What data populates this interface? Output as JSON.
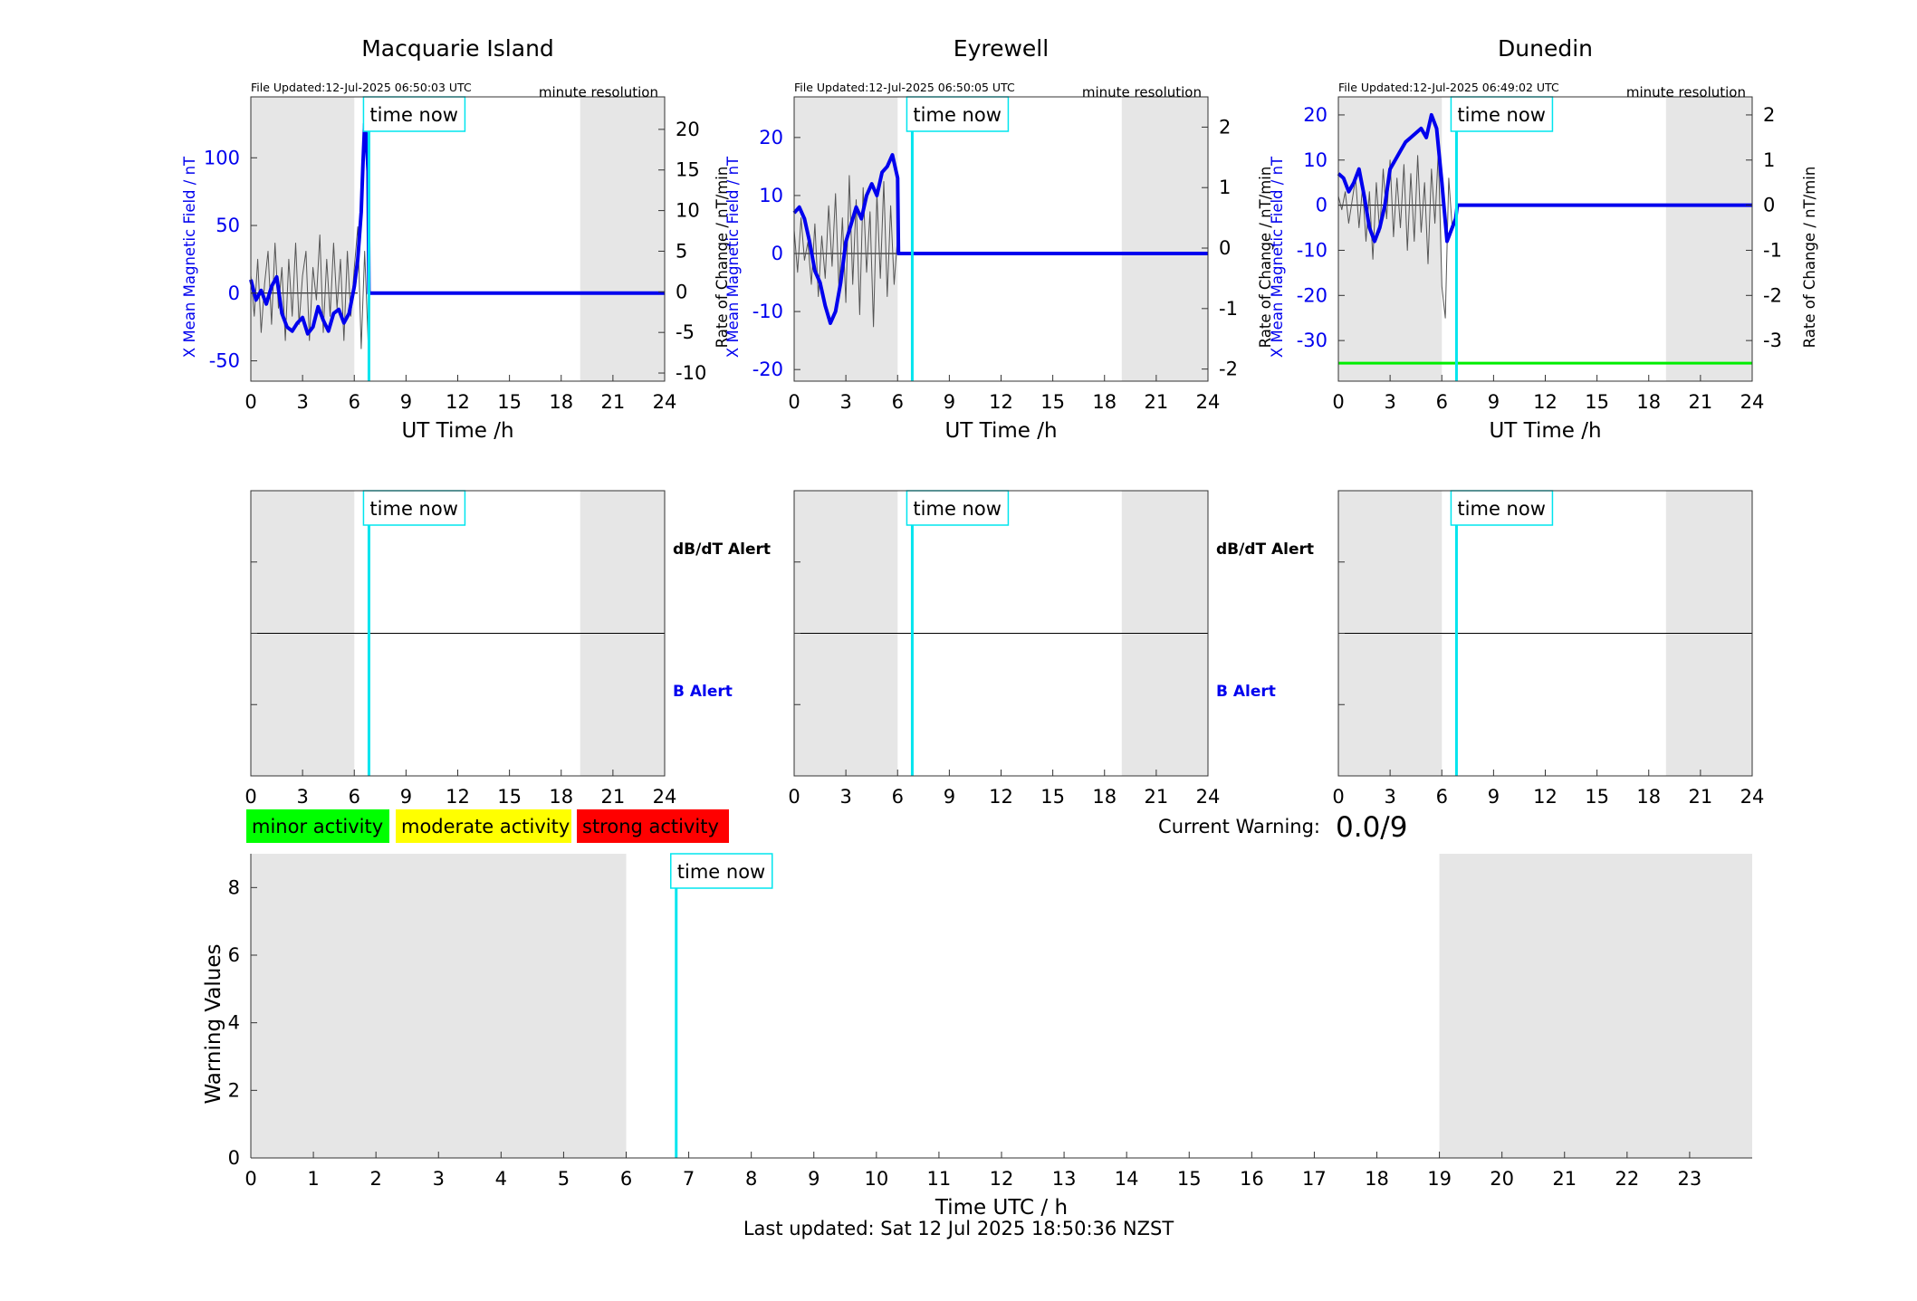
{
  "footer": {
    "last_updated": "Last updated: Sat 12 Jul 2025 18:50:36 NZST"
  },
  "labels": {
    "time_now": "time now",
    "minute_resolution": "minute resolution",
    "dbdt_alert": "dB/dT Alert",
    "b_alert": "B Alert",
    "current_warning_label": "Current Warning:",
    "current_warning_value": "0.0/9"
  },
  "legend": [
    {
      "label": "minor activity",
      "color": "#00ff00"
    },
    {
      "label": "moderate activity",
      "color": "#ffff00"
    },
    {
      "label": "strong activity",
      "color": "#ff0000"
    }
  ],
  "colors": {
    "field_line": "#0000ee",
    "rate_line": "#555555",
    "time_now_line": "#00e5ee",
    "night_shade": "#e6e6e6",
    "threshold_line": "#00ee00"
  },
  "chart_data": [
    {
      "id": "macquarie",
      "type": "line",
      "title": "Macquarie Island",
      "file_updated": "File Updated:12-Jul-2025 06:50:03 UTC",
      "xlabel": "UT Time /h",
      "ylabel": "X Mean Magnetic Field / nT",
      "ylabel_right": "Rate of Change / nT/min",
      "xlim": [
        0,
        24
      ],
      "ylim": [
        -65,
        145
      ],
      "ylim_right": [
        -11,
        24
      ],
      "xticks": [
        0,
        3,
        6,
        9,
        12,
        15,
        18,
        21,
        24
      ],
      "yticks": [
        -50,
        0,
        50,
        100
      ],
      "yticks_right": [
        -10,
        -5,
        0,
        5,
        10,
        15,
        20
      ],
      "night_shade": [
        [
          0,
          6
        ],
        [
          19.1,
          24
        ]
      ],
      "time_now": 6.85,
      "series": [
        {
          "axis": "left",
          "x": [
            0,
            0.3,
            0.6,
            0.9,
            1.2,
            1.5,
            1.8,
            2.1,
            2.4,
            2.7,
            3.0,
            3.3,
            3.6,
            3.9,
            4.2,
            4.5,
            4.8,
            5.1,
            5.4,
            5.7,
            6.0,
            6.2,
            6.4,
            6.5,
            6.6,
            6.7,
            6.8,
            6.85,
            24
          ],
          "values": [
            10,
            -5,
            2,
            -8,
            5,
            12,
            -15,
            -25,
            -28,
            -22,
            -18,
            -30,
            -25,
            -10,
            -20,
            -28,
            -15,
            -12,
            -22,
            -15,
            5,
            25,
            60,
            95,
            125,
            115,
            90,
            0,
            0
          ]
        },
        {
          "axis": "right",
          "x": [
            0,
            0.2,
            0.4,
            0.6,
            0.8,
            1.0,
            1.2,
            1.4,
            1.6,
            1.8,
            2.0,
            2.2,
            2.4,
            2.6,
            2.8,
            3.0,
            3.2,
            3.4,
            3.6,
            3.8,
            4.0,
            4.2,
            4.4,
            4.6,
            4.8,
            5.0,
            5.2,
            5.4,
            5.6,
            5.8,
            6.0,
            6.2,
            6.4,
            6.6,
            6.8
          ],
          "values": [
            2,
            -3,
            4,
            -5,
            1,
            5,
            -4,
            6,
            -2,
            3,
            -6,
            4,
            -3,
            6,
            -4,
            2,
            5,
            -6,
            3,
            -1,
            7,
            -5,
            4,
            -3,
            6,
            -2,
            4,
            -6,
            5,
            -3,
            3,
            8,
            -7,
            5,
            -6
          ]
        }
      ]
    },
    {
      "id": "eyrewell",
      "type": "line",
      "title": "Eyrewell",
      "file_updated": "File Updated:12-Jul-2025 06:50:05 UTC",
      "xlabel": "UT Time /h",
      "ylabel": "X Mean Magnetic Field / nT",
      "ylabel_right": "Rate of Change / nT/min",
      "xlim": [
        0,
        24
      ],
      "ylim": [
        -22,
        27
      ],
      "ylim_right": [
        -2.2,
        2.5
      ],
      "xticks": [
        0,
        3,
        6,
        9,
        12,
        15,
        18,
        21,
        24
      ],
      "yticks": [
        -20,
        -10,
        0,
        10,
        20
      ],
      "yticks_right": [
        -2,
        -1,
        0,
        1,
        2
      ],
      "night_shade": [
        [
          0,
          6
        ],
        [
          19,
          24
        ]
      ],
      "time_now": 6.85,
      "series": [
        {
          "axis": "left",
          "x": [
            0,
            0.3,
            0.6,
            0.9,
            1.2,
            1.5,
            1.8,
            2.1,
            2.4,
            2.7,
            3.0,
            3.3,
            3.6,
            3.9,
            4.2,
            4.5,
            4.8,
            5.1,
            5.4,
            5.7,
            6.0,
            6.05,
            24
          ],
          "values": [
            7,
            8,
            6,
            2,
            -3,
            -5,
            -9,
            -12,
            -10,
            -5,
            2,
            5,
            8,
            6,
            10,
            12,
            10,
            14,
            15,
            17,
            13,
            0,
            0
          ]
        },
        {
          "axis": "right",
          "x": [
            0,
            0.2,
            0.4,
            0.6,
            0.8,
            1.0,
            1.2,
            1.4,
            1.6,
            1.8,
            2.0,
            2.2,
            2.4,
            2.6,
            2.8,
            3.0,
            3.2,
            3.4,
            3.6,
            3.8,
            4.0,
            4.2,
            4.4,
            4.6,
            4.8,
            5.0,
            5.2,
            5.4,
            5.6,
            5.8,
            6.0
          ],
          "values": [
            0.3,
            -0.4,
            0.5,
            -0.2,
            0.1,
            -0.6,
            0.4,
            -0.8,
            0.2,
            -0.5,
            0.7,
            -0.3,
            0.9,
            -0.7,
            0.5,
            -0.9,
            1.2,
            -0.6,
            0.8,
            -1.1,
            1.0,
            -0.4,
            0.6,
            -1.3,
            0.9,
            -0.5,
            1.1,
            -0.8,
            0.7,
            -0.6,
            0.2
          ]
        }
      ]
    },
    {
      "id": "dunedin",
      "type": "line",
      "title": "Dunedin",
      "file_updated": "File Updated:12-Jul-2025 06:49:02 UTC",
      "xlabel": "UT Time /h",
      "ylabel": "X Mean Magnetic Field / nT",
      "ylabel_right": "Rate of Change / nT/min",
      "xlim": [
        0,
        24
      ],
      "ylim": [
        -39,
        24
      ],
      "ylim_right": [
        -3.9,
        2.4
      ],
      "xticks": [
        0,
        3,
        6,
        9,
        12,
        15,
        18,
        21,
        24
      ],
      "yticks": [
        -30,
        -20,
        -10,
        0,
        10,
        20
      ],
      "yticks_right": [
        -3,
        -2,
        -1,
        0,
        1,
        2
      ],
      "night_shade": [
        [
          0,
          6
        ],
        [
          19,
          24
        ]
      ],
      "time_now": 6.85,
      "threshold": -35,
      "series": [
        {
          "axis": "left",
          "x": [
            0,
            0.3,
            0.6,
            0.9,
            1.2,
            1.5,
            1.8,
            2.1,
            2.4,
            2.7,
            3.0,
            3.3,
            3.6,
            3.9,
            4.2,
            4.5,
            4.8,
            5.1,
            5.4,
            5.7,
            6.0,
            6.3,
            6.6,
            6.8,
            6.9,
            24
          ],
          "values": [
            7,
            6,
            3,
            5,
            8,
            2,
            -5,
            -8,
            -5,
            0,
            8,
            10,
            12,
            14,
            15,
            16,
            17,
            15,
            20,
            17,
            5,
            -8,
            -5,
            -3,
            0,
            0
          ]
        },
        {
          "axis": "right",
          "x": [
            0,
            0.2,
            0.4,
            0.6,
            0.8,
            1.0,
            1.2,
            1.4,
            1.6,
            1.8,
            2.0,
            2.2,
            2.4,
            2.6,
            2.8,
            3.0,
            3.2,
            3.4,
            3.6,
            3.8,
            4.0,
            4.2,
            4.4,
            4.6,
            4.8,
            5.0,
            5.2,
            5.4,
            5.6,
            5.8,
            6.0,
            6.2,
            6.4,
            6.6
          ],
          "values": [
            0.2,
            -0.1,
            0.3,
            -0.4,
            0.1,
            0.6,
            -0.5,
            0.4,
            -0.8,
            0.3,
            -1.2,
            0.5,
            -0.6,
            0.8,
            -0.3,
            1.0,
            -0.7,
            0.6,
            -0.5,
            0.9,
            -1.0,
            0.7,
            -0.8,
            1.1,
            -0.6,
            0.5,
            -1.3,
            0.8,
            -0.4,
            1.2,
            -1.8,
            -2.5,
            0.6,
            -0.5
          ]
        }
      ]
    },
    {
      "id": "alert-macquarie",
      "type": "table",
      "xlim": [
        0,
        24
      ],
      "xticks": [
        0,
        3,
        6,
        9,
        12,
        15,
        18,
        21,
        24
      ],
      "night_shade": [
        [
          0,
          6
        ],
        [
          19.1,
          24
        ]
      ],
      "time_now": 6.85,
      "show_alert_labels": true
    },
    {
      "id": "alert-eyrewell",
      "type": "table",
      "xlim": [
        0,
        24
      ],
      "xticks": [
        0,
        3,
        6,
        9,
        12,
        15,
        18,
        21,
        24
      ],
      "night_shade": [
        [
          0,
          6
        ],
        [
          19,
          24
        ]
      ],
      "time_now": 6.85,
      "show_alert_labels": true
    },
    {
      "id": "alert-dunedin",
      "type": "table",
      "xlim": [
        0,
        24
      ],
      "xticks": [
        0,
        3,
        6,
        9,
        12,
        15,
        18,
        21,
        24
      ],
      "night_shade": [
        [
          0,
          6
        ],
        [
          19,
          24
        ]
      ],
      "time_now": 6.85,
      "show_alert_labels": false
    },
    {
      "id": "warning",
      "type": "bar",
      "xlabel": "Time UTC / h",
      "ylabel": "Warning Values",
      "xlim": [
        0,
        24
      ],
      "ylim": [
        0,
        9
      ],
      "xticks": [
        0,
        1,
        2,
        3,
        4,
        5,
        6,
        7,
        8,
        9,
        10,
        11,
        12,
        13,
        14,
        15,
        16,
        17,
        18,
        19,
        20,
        21,
        22,
        23
      ],
      "yticks": [
        0,
        2,
        4,
        6,
        8
      ],
      "night_shade": [
        [
          0,
          6
        ],
        [
          19,
          24
        ]
      ],
      "time_now": 6.8,
      "values": []
    }
  ]
}
